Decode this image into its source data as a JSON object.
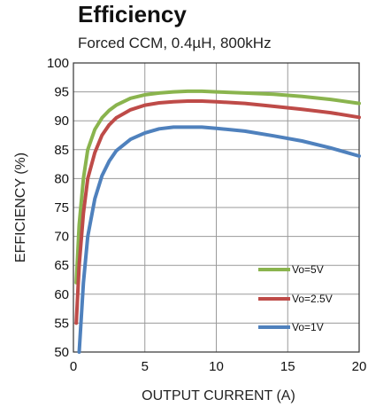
{
  "chart_data": {
    "type": "line",
    "title": "Efficiency",
    "subtitle": "Forced CCM, 0.4µH, 800kHz",
    "xlabel": "OUTPUT CURRENT (A)",
    "ylabel": "EFFICIENCY (%)",
    "xlim": [
      0,
      20
    ],
    "ylim": [
      50,
      100
    ],
    "xticks": [
      0,
      5,
      10,
      15,
      20
    ],
    "yticks": [
      50,
      55,
      60,
      65,
      70,
      75,
      80,
      85,
      90,
      95,
      100
    ],
    "xtick_labels": [
      "0",
      "5",
      "10",
      "15",
      "20"
    ],
    "ytick_labels": [
      "50",
      "55",
      "60",
      "65",
      "70",
      "75",
      "80",
      "85",
      "90",
      "95",
      "100"
    ],
    "grid": true,
    "legend_position": "lower-right",
    "series": [
      {
        "name": "Vo=5V",
        "color": "#8ab44e",
        "x": [
          0.2,
          0.4,
          0.7,
          1.0,
          1.5,
          2.0,
          2.5,
          3.0,
          4.0,
          5.0,
          6.0,
          7.0,
          8.0,
          9.0,
          10.0,
          12.0,
          14.0,
          16.0,
          18.0,
          20.0
        ],
        "y": [
          62,
          72,
          80,
          85,
          88.5,
          90.5,
          91.8,
          92.7,
          93.9,
          94.5,
          94.8,
          95.0,
          95.1,
          95.1,
          95.0,
          94.8,
          94.6,
          94.2,
          93.7,
          93.0
        ]
      },
      {
        "name": "Vo=2.5V",
        "color": "#be4b48",
        "x": [
          0.2,
          0.4,
          0.7,
          1.0,
          1.5,
          2.0,
          2.5,
          3.0,
          4.0,
          5.0,
          6.0,
          7.0,
          8.0,
          9.0,
          10.0,
          12.0,
          14.0,
          16.0,
          18.0,
          20.0
        ],
        "y": [
          55,
          65,
          74,
          80,
          84.5,
          87.5,
          89.3,
          90.5,
          91.9,
          92.7,
          93.1,
          93.3,
          93.4,
          93.4,
          93.3,
          93.0,
          92.5,
          92.0,
          91.4,
          90.6
        ]
      },
      {
        "name": "Vo=1V",
        "color": "#4f81bd",
        "x": [
          0.4,
          0.7,
          1.0,
          1.5,
          2.0,
          2.5,
          3.0,
          4.0,
          5.0,
          6.0,
          7.0,
          8.0,
          9.0,
          10.0,
          12.0,
          14.0,
          16.0,
          18.0,
          20.0
        ],
        "y": [
          50,
          62,
          70,
          76.5,
          80.5,
          83,
          84.8,
          86.8,
          87.9,
          88.6,
          88.9,
          88.9,
          88.9,
          88.7,
          88.2,
          87.4,
          86.5,
          85.3,
          83.9
        ]
      }
    ]
  }
}
